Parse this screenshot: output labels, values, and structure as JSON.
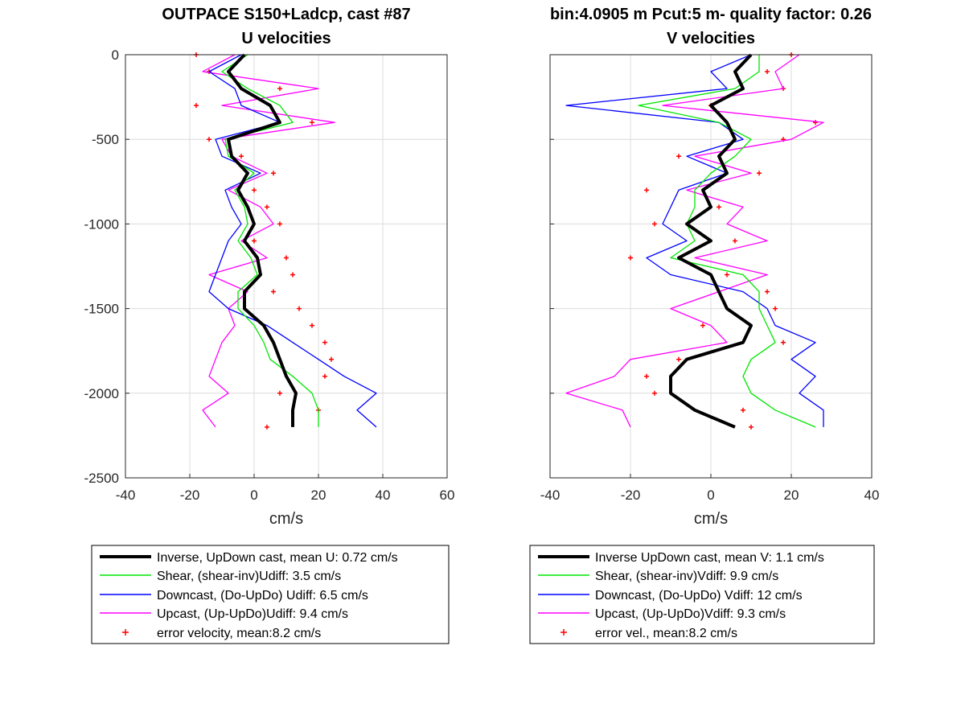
{
  "figure": {
    "left": {
      "title_line1": "OUTPACE S150+Ladcp, cast #87",
      "title_line2": "U velocities",
      "xlabel": "cm/s",
      "xlim": [
        -40,
        60
      ],
      "ylim": [
        -2500,
        0
      ],
      "xticks": [
        "-40",
        "-20",
        "0",
        "20",
        "40",
        "60"
      ],
      "yticks": [
        "0",
        "-500",
        "-1000",
        "-1500",
        "-2000",
        "-2500"
      ],
      "legend": [
        "Inverse, UpDown cast, mean U:  0.72 cm/s",
        "Shear, (shear-inv)Udiff:  3.5 cm/s",
        "Downcast, (Do-UpDo) Udiff:  6.5 cm/s",
        "Upcast, (Up-UpDo)Udiff:  9.4 cm/s",
        "error velocity, mean:8.2 cm/s"
      ]
    },
    "right": {
      "title_line1": "bin:4.0905 m  Pcut:5 m- quality factor:  0.26",
      "title_line2": "V velocities",
      "xlabel": "cm/s",
      "xlim": [
        -40,
        40
      ],
      "ylim": [
        -2500,
        0
      ],
      "xticks": [
        "-40",
        "-20",
        "0",
        "20",
        "40"
      ],
      "legend": [
        "Inverse UpDown cast, mean V:  1.1 cm/s",
        "Shear, (shear-inv)Vdiff:  9.9 cm/s",
        "Downcast, (Do-UpDo) Vdiff:  12 cm/s",
        "Upcast, (Up-UpDo)Vdiff:  9.3 cm/s",
        "error vel., mean:8.2 cm/s"
      ]
    }
  },
  "colors": {
    "inverse": "#000000",
    "shear": "#00e600",
    "downcast": "#0000ff",
    "upcast": "#ff00ff",
    "error": "#ff0000",
    "grid": "#dcdcdc"
  },
  "chart_data": [
    {
      "type": "line",
      "title": "OUTPACE S150+Ladcp, cast #87 U velocities",
      "xlabel": "cm/s",
      "ylabel": "",
      "xlim": [
        -40,
        60
      ],
      "ylim": [
        -2500,
        0
      ],
      "grid": true,
      "legend_position": "below",
      "y": [
        0,
        -100,
        -200,
        -300,
        -400,
        -500,
        -600,
        -700,
        -800,
        -900,
        -1000,
        -1100,
        -1200,
        -1300,
        -1400,
        -1500,
        -1600,
        -1700,
        -1800,
        -1900,
        -2000,
        -2100,
        -2200
      ],
      "series": [
        {
          "name": "Inverse, UpDown cast, mean U:  0.72 cm/s",
          "values": [
            -3,
            -8,
            -4,
            5,
            8,
            -8,
            -7,
            -2,
            -5,
            -2,
            0,
            -3,
            1,
            2,
            -3,
            -3,
            3,
            6,
            8,
            10,
            13,
            12,
            12
          ]
        },
        {
          "name": "Shear, (shear-inv)Udiff:  3.5 cm/s",
          "values": [
            -2,
            -10,
            -2,
            8,
            12,
            -9,
            -8,
            0,
            -6,
            -3,
            -2,
            -5,
            -1,
            1,
            -5,
            -5,
            0,
            3,
            5,
            12,
            18,
            20,
            20
          ]
        },
        {
          "name": "Downcast, (Do-UpDo) Udiff:  6.5 cm/s",
          "values": [
            -4,
            -14,
            -6,
            -4,
            8,
            -12,
            -10,
            2,
            -9,
            -7,
            -4,
            -8,
            -10,
            -12,
            -14,
            -8,
            4,
            12,
            20,
            28,
            38,
            32,
            38
          ]
        },
        {
          "name": "Upcast, (Up-UpDo)Udiff:  9.4 cm/s",
          "values": [
            -6,
            -16,
            20,
            -10,
            25,
            -10,
            -7,
            4,
            -8,
            2,
            6,
            -4,
            4,
            -14,
            -2,
            -8,
            -6,
            -10,
            -12,
            -14,
            -8,
            -16,
            -12
          ]
        },
        {
          "name": "error velocity, mean:8.2 cm/s",
          "values": [
            -18,
            -14,
            8,
            -18,
            18,
            -14,
            -4,
            6,
            0,
            4,
            8,
            0,
            10,
            12,
            6,
            14,
            18,
            22,
            24,
            22,
            8,
            20,
            4
          ]
        }
      ]
    },
    {
      "type": "line",
      "title": "bin:4.0905 m  Pcut:5 m- quality factor:  0.26 V velocities",
      "xlabel": "cm/s",
      "ylabel": "",
      "xlim": [
        -40,
        40
      ],
      "ylim": [
        -2500,
        0
      ],
      "grid": true,
      "legend_position": "below",
      "y": [
        0,
        -100,
        -200,
        -300,
        -400,
        -500,
        -600,
        -700,
        -800,
        -900,
        -1000,
        -1100,
        -1200,
        -1300,
        -1400,
        -1500,
        -1600,
        -1700,
        -1800,
        -1900,
        -2000,
        -2100,
        -2200
      ],
      "series": [
        {
          "name": "Inverse UpDown cast, mean V:  1.1 cm/s",
          "values": [
            10,
            6,
            8,
            0,
            4,
            6,
            2,
            4,
            -2,
            0,
            -6,
            0,
            -8,
            0,
            2,
            4,
            10,
            8,
            -6,
            -10,
            -10,
            -4,
            6
          ]
        },
        {
          "name": "Shear, (shear-inv)Vdiff:  9.9 cm/s",
          "values": [
            12,
            12,
            6,
            -18,
            2,
            10,
            6,
            0,
            -4,
            -4,
            -6,
            -4,
            -10,
            8,
            12,
            12,
            14,
            16,
            10,
            8,
            10,
            16,
            26
          ]
        },
        {
          "name": "Downcast, (Do-UpDo) Vdiff:  12 cm/s",
          "values": [
            10,
            0,
            4,
            -36,
            2,
            8,
            -6,
            4,
            -8,
            -10,
            -12,
            -6,
            -16,
            -10,
            8,
            14,
            16,
            26,
            20,
            26,
            22,
            28,
            28
          ]
        },
        {
          "name": "Upcast, (Up-UpDo)Vdiff:  9.3 cm/s",
          "values": [
            22,
            16,
            18,
            -12,
            28,
            20,
            -4,
            10,
            -6,
            8,
            4,
            14,
            -4,
            14,
            2,
            -10,
            0,
            4,
            -20,
            -24,
            -36,
            -22,
            -20
          ]
        },
        {
          "name": "error vel., mean:8.2 cm/s",
          "values": [
            20,
            14,
            18,
            0,
            26,
            18,
            -8,
            12,
            -16,
            2,
            -14,
            6,
            -20,
            4,
            14,
            16,
            -2,
            18,
            -8,
            -16,
            -14,
            8,
            10
          ]
        }
      ]
    }
  ]
}
